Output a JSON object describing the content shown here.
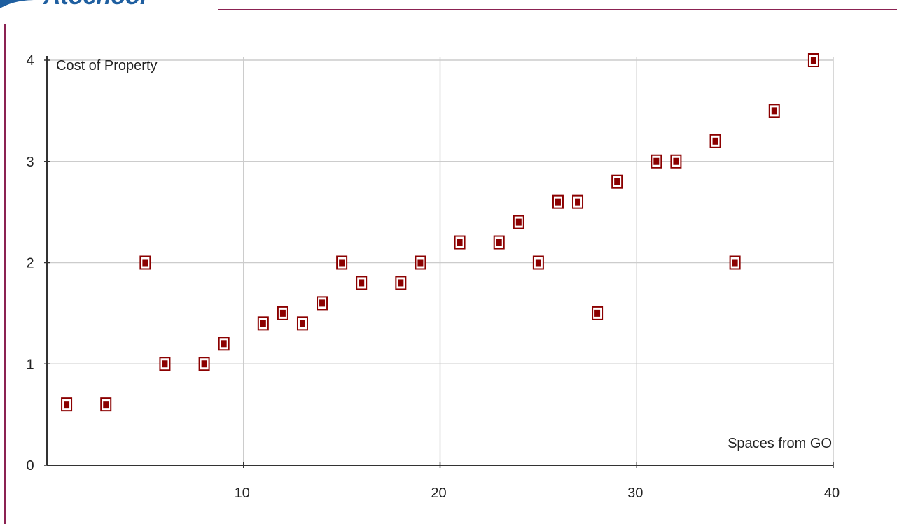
{
  "header": {
    "logo_text": "Atochool"
  },
  "colors": {
    "frame_line": "#8b2252",
    "header_swoosh": "#1f5fa0",
    "marker_fill": "#8b0000",
    "marker_outline": "#8b0000",
    "grid": "#cccccc",
    "axis": "#333333"
  },
  "chart_data": {
    "type": "scatter",
    "title": "",
    "xlabel": "Spaces from GO",
    "ylabel": "Cost of Property",
    "xlim": [
      0,
      40
    ],
    "ylim": [
      0,
      4
    ],
    "x_ticks": [
      10,
      20,
      30,
      40
    ],
    "y_ticks": [
      0,
      1,
      2,
      3,
      4
    ],
    "x_tick_labels": [
      "10",
      "20",
      "30",
      "40"
    ],
    "y_tick_labels": [
      "0",
      "1",
      "2",
      "3",
      "4"
    ],
    "grid": true,
    "marker": "square",
    "points": [
      {
        "x": 1,
        "y": 0.6
      },
      {
        "x": 3,
        "y": 0.6
      },
      {
        "x": 5,
        "y": 2.0
      },
      {
        "x": 6,
        "y": 1.0
      },
      {
        "x": 8,
        "y": 1.0
      },
      {
        "x": 9,
        "y": 1.2
      },
      {
        "x": 11,
        "y": 1.4
      },
      {
        "x": 12,
        "y": 1.5
      },
      {
        "x": 13,
        "y": 1.4
      },
      {
        "x": 14,
        "y": 1.6
      },
      {
        "x": 15,
        "y": 2.0
      },
      {
        "x": 16,
        "y": 1.8
      },
      {
        "x": 18,
        "y": 1.8
      },
      {
        "x": 19,
        "y": 2.0
      },
      {
        "x": 21,
        "y": 2.2
      },
      {
        "x": 23,
        "y": 2.2
      },
      {
        "x": 24,
        "y": 2.4
      },
      {
        "x": 25,
        "y": 2.0
      },
      {
        "x": 26,
        "y": 2.6
      },
      {
        "x": 27,
        "y": 2.6
      },
      {
        "x": 28,
        "y": 1.5
      },
      {
        "x": 29,
        "y": 2.8
      },
      {
        "x": 31,
        "y": 3.0
      },
      {
        "x": 32,
        "y": 3.0
      },
      {
        "x": 34,
        "y": 3.2
      },
      {
        "x": 35,
        "y": 2.0
      },
      {
        "x": 37,
        "y": 3.5
      },
      {
        "x": 39,
        "y": 4.0
      }
    ]
  }
}
